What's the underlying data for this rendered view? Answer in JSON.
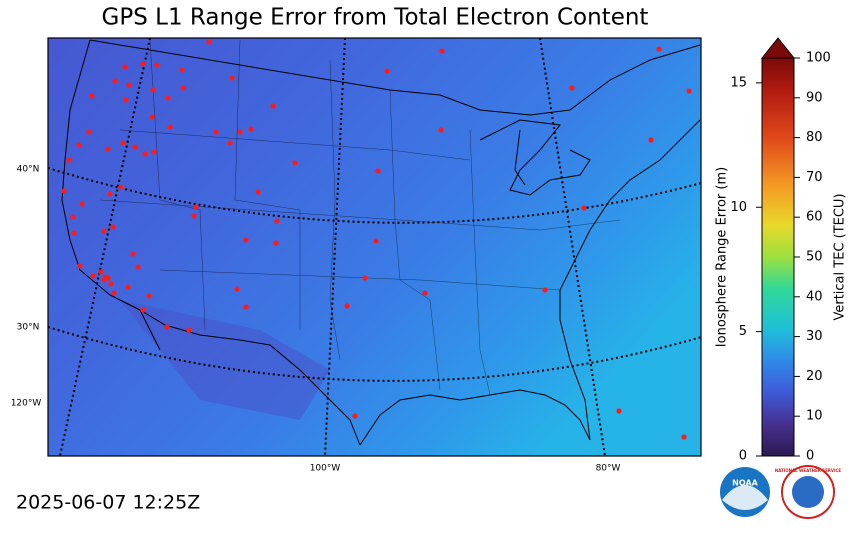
{
  "title": "GPS L1 Range Error from Total Electron Content",
  "map": {
    "lat_labels": [
      "40°N",
      "30°N",
      "120°W"
    ],
    "lon_labels": [
      "100°W",
      "80°W"
    ]
  },
  "colorbar": {
    "left_label": "Ionosphere Range Error (m)",
    "left_lim": [
      0,
      16
    ],
    "left_ticks": [
      0,
      5,
      10,
      15
    ],
    "right_label": "Vertical TEC (TECU)",
    "right_lim": [
      0,
      100
    ],
    "right_ticks": [
      0,
      10,
      20,
      30,
      40,
      50,
      60,
      70,
      80,
      90,
      100
    ]
  },
  "timestamp": "2025-06-07 12:25Z",
  "logos": {
    "noaa": "NOAA",
    "nws": "NATIONAL WEATHER SERVICE"
  }
}
